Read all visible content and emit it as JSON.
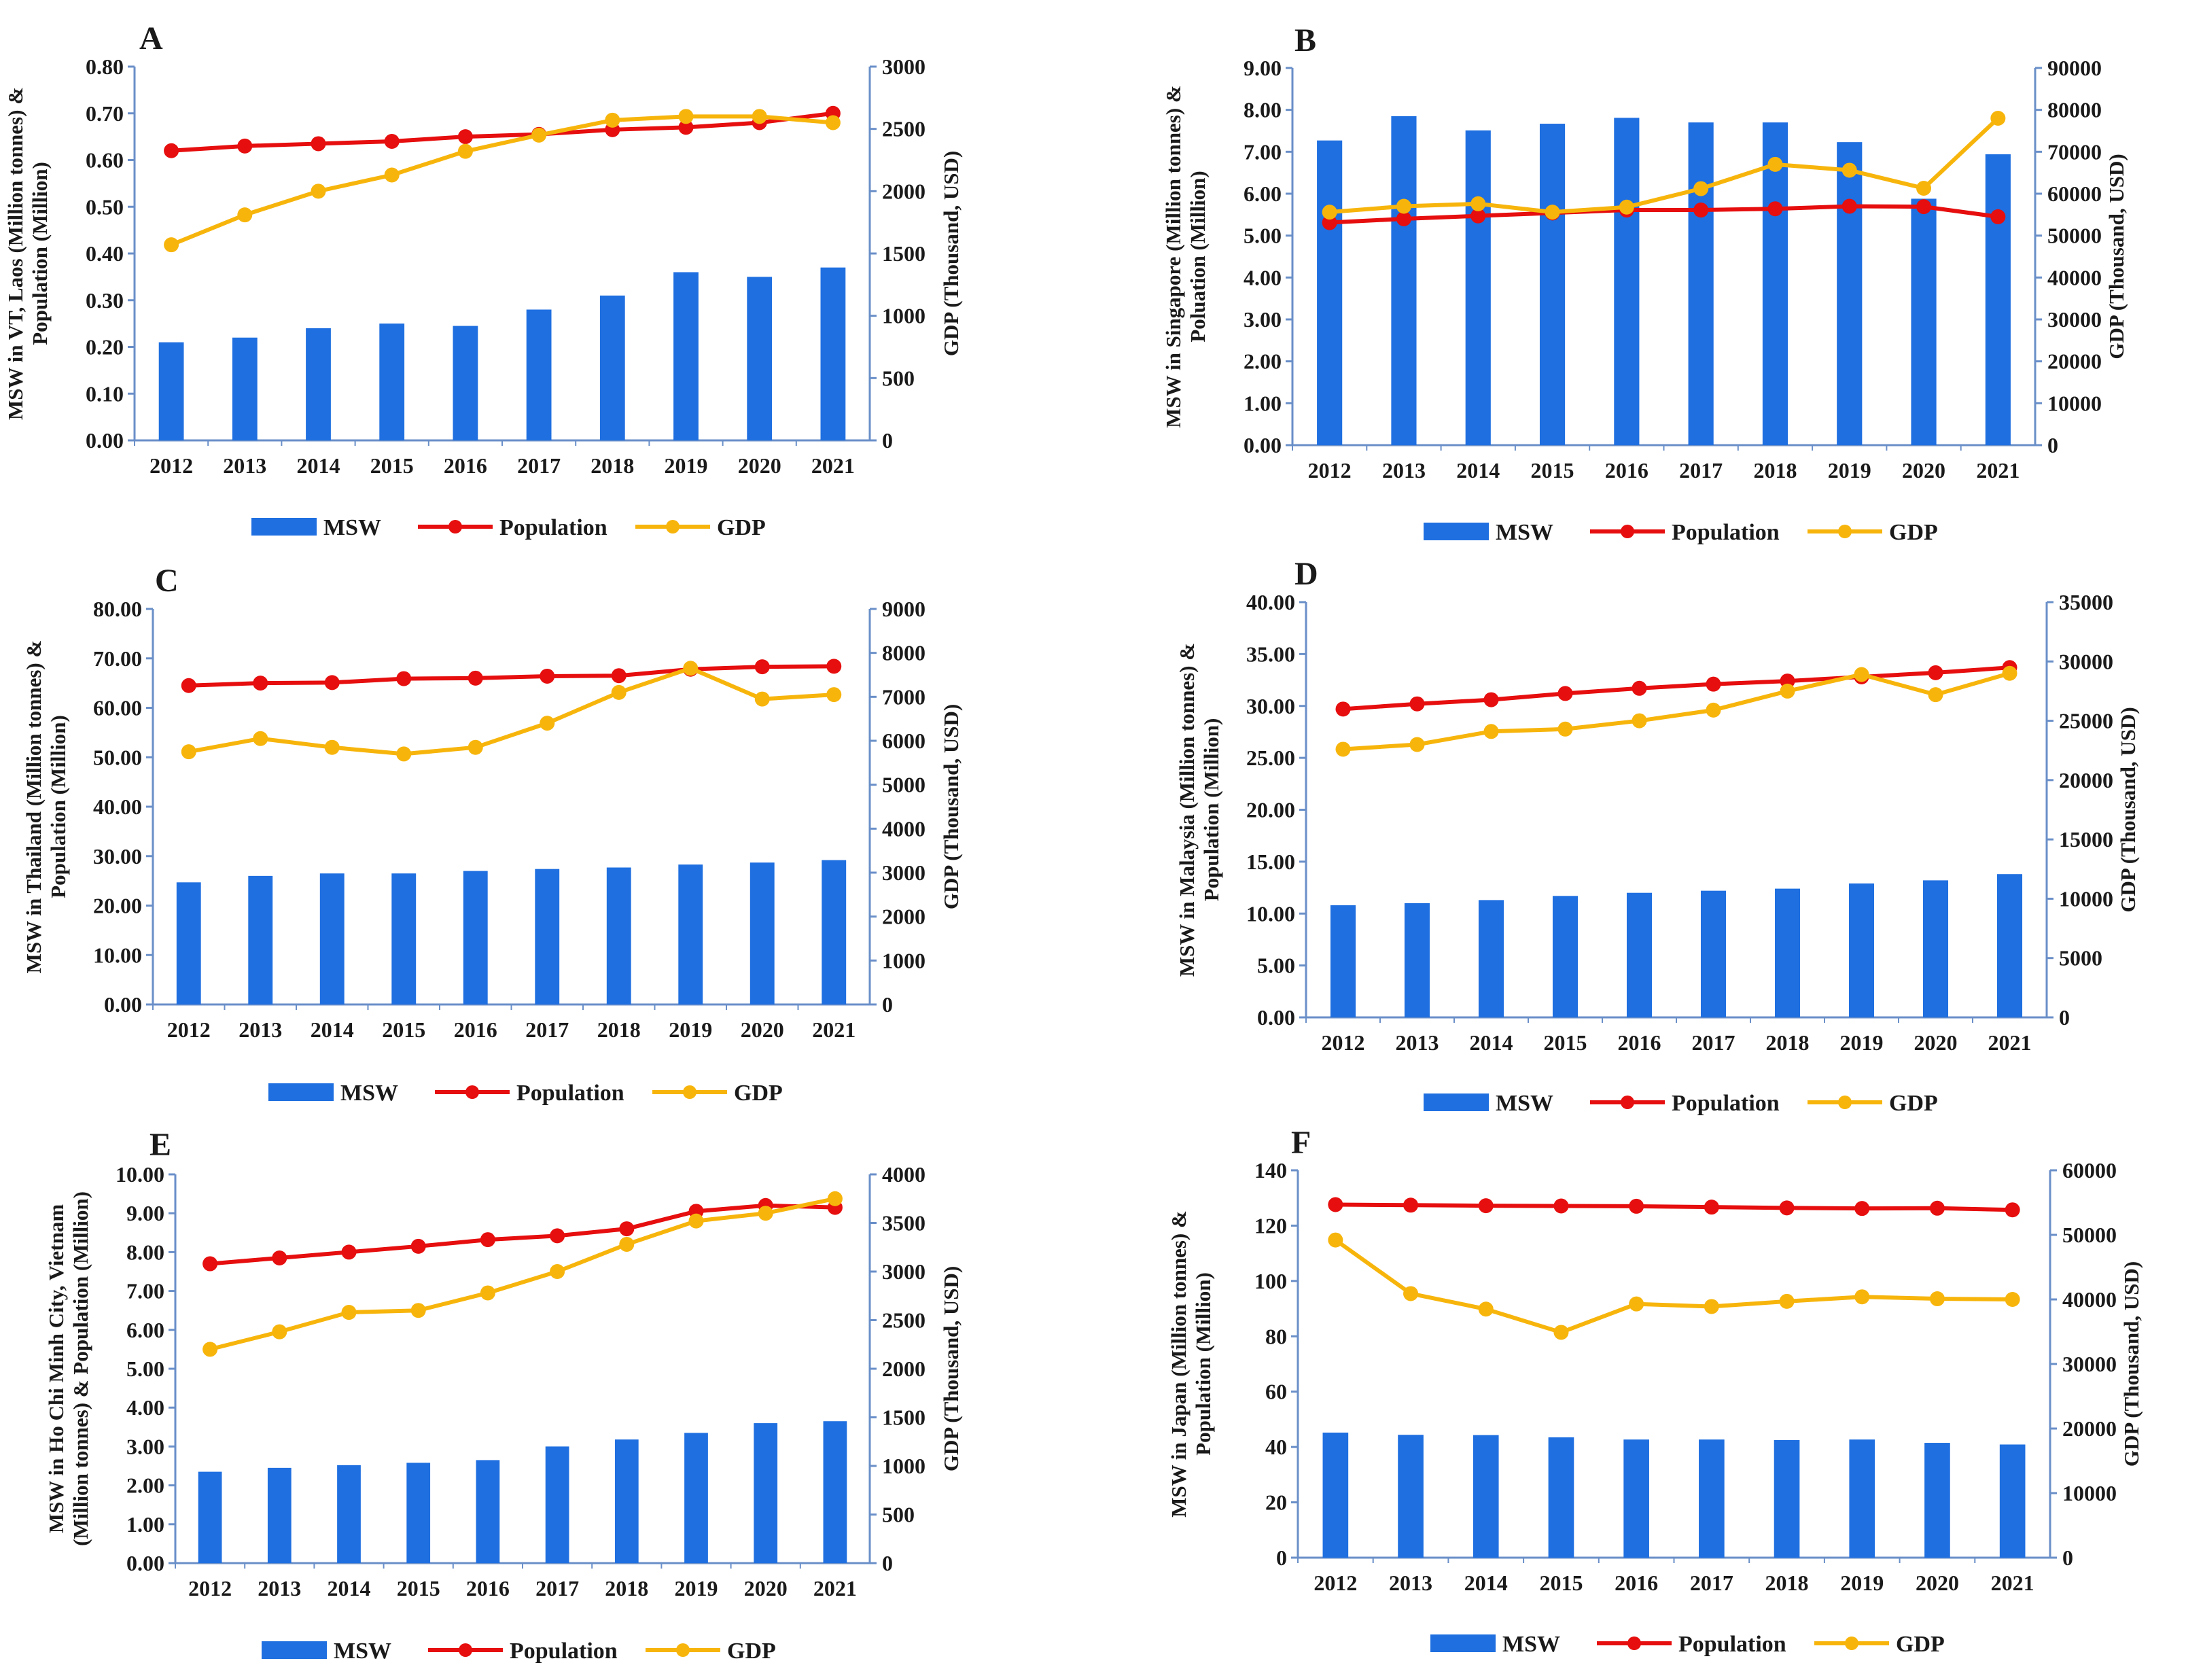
{
  "colors": {
    "msw": "#1f6fe0",
    "population": "#e60e0e",
    "gdp": "#f7b50c",
    "axis": "#6a8fc8"
  },
  "legend": {
    "msw": "MSW",
    "population": "Population",
    "gdp": "GDP"
  },
  "chart_data": [
    {
      "panel": "A",
      "type": "bar+line",
      "categories": [
        "2012",
        "2013",
        "2014",
        "2015",
        "2016",
        "2017",
        "2018",
        "2019",
        "2020",
        "2021"
      ],
      "ylabel_lines": [
        "MSW in VT, Laos (Million tonnes) &",
        "Population (Million)"
      ],
      "y2label": "GDP (Thousand, USD)",
      "yticks": [
        "0.00",
        "0.10",
        "0.20",
        "0.30",
        "0.40",
        "0.50",
        "0.60",
        "0.70",
        "0.80"
      ],
      "y2ticks": [
        "0",
        "500",
        "1000",
        "1500",
        "2000",
        "2500",
        "3000"
      ],
      "ylim": [
        0,
        0.8
      ],
      "y2lim": [
        0,
        3000
      ],
      "series": [
        {
          "name": "MSW",
          "kind": "bar",
          "axis": "left",
          "values": [
            0.21,
            0.22,
            0.24,
            0.25,
            0.245,
            0.28,
            0.31,
            0.36,
            0.35,
            0.37
          ]
        },
        {
          "name": "Population",
          "kind": "line",
          "axis": "left",
          "values": [
            0.62,
            0.63,
            0.635,
            0.64,
            0.65,
            0.655,
            0.665,
            0.67,
            0.68,
            0.7
          ]
        },
        {
          "name": "GDP",
          "kind": "line",
          "axis": "right",
          "values": [
            1570,
            1810,
            2000,
            2130,
            2320,
            2450,
            2570,
            2600,
            2600,
            2550
          ]
        }
      ]
    },
    {
      "panel": "B",
      "type": "bar+line",
      "categories": [
        "2012",
        "2013",
        "2014",
        "2015",
        "2016",
        "2017",
        "2018",
        "2019",
        "2020",
        "2021"
      ],
      "ylabel_lines": [
        "MSW in Singapore (Million tonnes) &",
        "Poluation (Million)"
      ],
      "y2label": "GDP (Thousand, USD)",
      "yticks": [
        "0.00",
        "1.00",
        "2.00",
        "3.00",
        "4.00",
        "5.00",
        "6.00",
        "7.00",
        "8.00",
        "9.00"
      ],
      "y2ticks": [
        "0",
        "10000",
        "20000",
        "30000",
        "40000",
        "50000",
        "60000",
        "70000",
        "80000",
        "90000"
      ],
      "ylim": [
        0,
        9
      ],
      "y2lim": [
        0,
        90000
      ],
      "series": [
        {
          "name": "MSW",
          "kind": "bar",
          "axis": "left",
          "values": [
            7.27,
            7.85,
            7.51,
            7.67,
            7.81,
            7.7,
            7.7,
            7.23,
            5.88,
            6.94
          ]
        },
        {
          "name": "Population",
          "kind": "line",
          "axis": "left",
          "values": [
            5.31,
            5.4,
            5.47,
            5.54,
            5.61,
            5.61,
            5.64,
            5.7,
            5.69,
            5.45
          ]
        },
        {
          "name": "GDP",
          "kind": "line",
          "axis": "right",
          "values": [
            55600,
            57000,
            57600,
            55600,
            56800,
            61200,
            67000,
            65600,
            61300,
            78000
          ]
        }
      ]
    },
    {
      "panel": "C",
      "type": "bar+line",
      "categories": [
        "2012",
        "2013",
        "2014",
        "2015",
        "2016",
        "2017",
        "2018",
        "2019",
        "2020",
        "2021"
      ],
      "ylabel_lines": [
        "MSW in Thailand (Million tonnes) &",
        "Population (Million)"
      ],
      "y2label": "GDP (Thousand, USD)",
      "yticks": [
        "0.00",
        "10.00",
        "20.00",
        "30.00",
        "40.00",
        "50.00",
        "60.00",
        "70.00",
        "80.00"
      ],
      "y2ticks": [
        "0",
        "1000",
        "2000",
        "3000",
        "4000",
        "5000",
        "6000",
        "7000",
        "8000",
        "9000"
      ],
      "ylim": [
        0,
        80
      ],
      "y2lim": [
        0,
        9000
      ],
      "series": [
        {
          "name": "MSW",
          "kind": "bar",
          "axis": "left",
          "values": [
            24.7,
            26.0,
            26.5,
            26.5,
            27.0,
            27.4,
            27.7,
            28.3,
            28.7,
            29.2
          ]
        },
        {
          "name": "Population",
          "kind": "line",
          "axis": "left",
          "values": [
            64.5,
            65.0,
            65.1,
            65.9,
            66.0,
            66.4,
            66.5,
            67.8,
            68.3,
            68.4
          ]
        },
        {
          "name": "GDP",
          "kind": "line",
          "axis": "right",
          "values": [
            5750,
            6050,
            5850,
            5700,
            5850,
            6400,
            7100,
            7650,
            6950,
            7050
          ]
        }
      ]
    },
    {
      "panel": "D",
      "type": "bar+line",
      "categories": [
        "2012",
        "2013",
        "2014",
        "2015",
        "2016",
        "2017",
        "2018",
        "2019",
        "2020",
        "2021"
      ],
      "ylabel_lines": [
        "MSW in Malaysia (Million tonnes) &",
        "Population (Million)"
      ],
      "y2label": "GDP (Thousand, USD)",
      "yticks": [
        "0.00",
        "5.00",
        "10.00",
        "15.00",
        "20.00",
        "25.00",
        "30.00",
        "35.00",
        "40.00"
      ],
      "y2ticks": [
        "0",
        "5000",
        "10000",
        "15000",
        "20000",
        "25000",
        "30000",
        "35000"
      ],
      "ylim": [
        0,
        40
      ],
      "y2lim": [
        0,
        35000
      ],
      "series": [
        {
          "name": "MSW",
          "kind": "bar",
          "axis": "left",
          "values": [
            10.8,
            11.0,
            11.3,
            11.7,
            12.0,
            12.2,
            12.4,
            12.9,
            13.2,
            13.8
          ]
        },
        {
          "name": "Population",
          "kind": "line",
          "axis": "left",
          "values": [
            29.7,
            30.2,
            30.6,
            31.2,
            31.7,
            32.1,
            32.4,
            32.8,
            33.2,
            33.7
          ]
        },
        {
          "name": "GDP",
          "kind": "line",
          "axis": "right",
          "values": [
            22600,
            23000,
            24100,
            24300,
            25000,
            25900,
            27500,
            28900,
            27200,
            29000
          ]
        }
      ]
    },
    {
      "panel": "E",
      "type": "bar+line",
      "categories": [
        "2012",
        "2013",
        "2014",
        "2015",
        "2016",
        "2017",
        "2018",
        "2019",
        "2020",
        "2021"
      ],
      "ylabel_lines": [
        "MSW in Ho Chi Minh City, Vietnam",
        "(Million tonnes) & Population (Million)"
      ],
      "y2label": "GDP (Thousand, USD)",
      "yticks": [
        "0.00",
        "1.00",
        "2.00",
        "3.00",
        "4.00",
        "5.00",
        "6.00",
        "7.00",
        "8.00",
        "9.00",
        "10.00"
      ],
      "y2ticks": [
        "0",
        "500",
        "1000",
        "1500",
        "2000",
        "2500",
        "3000",
        "3500",
        "4000"
      ],
      "ylim": [
        0,
        10
      ],
      "y2lim": [
        0,
        4000
      ],
      "series": [
        {
          "name": "MSW",
          "kind": "bar",
          "axis": "left",
          "values": [
            2.35,
            2.45,
            2.52,
            2.58,
            2.65,
            3.0,
            3.18,
            3.35,
            3.6,
            3.65
          ]
        },
        {
          "name": "Population",
          "kind": "line",
          "axis": "left",
          "values": [
            7.7,
            7.85,
            8.0,
            8.15,
            8.32,
            8.42,
            8.6,
            9.05,
            9.2,
            9.15
          ]
        },
        {
          "name": "GDP",
          "kind": "line",
          "axis": "right",
          "values": [
            2200,
            2380,
            2580,
            2600,
            2780,
            3000,
            3280,
            3520,
            3600,
            3750
          ]
        }
      ]
    },
    {
      "panel": "F",
      "type": "bar+line",
      "categories": [
        "2012",
        "2013",
        "2014",
        "2015",
        "2016",
        "2017",
        "2018",
        "2019",
        "2020",
        "2021"
      ],
      "ylabel_lines": [
        "MSW in Japan (Million tonnes) &",
        "Population (Million)"
      ],
      "y2label": "GDP (Thousand, USD)",
      "yticks": [
        "0",
        "20",
        "40",
        "60",
        "80",
        "100",
        "120",
        "140"
      ],
      "y2ticks": [
        "0",
        "10000",
        "20000",
        "30000",
        "40000",
        "50000",
        "60000"
      ],
      "ylim": [
        0,
        140
      ],
      "y2lim": [
        0,
        60000
      ],
      "series": [
        {
          "name": "MSW",
          "kind": "bar",
          "axis": "left",
          "values": [
            45.2,
            44.4,
            44.3,
            43.5,
            42.7,
            42.7,
            42.5,
            42.7,
            41.5,
            40.9
          ]
        },
        {
          "name": "Population",
          "kind": "line",
          "axis": "left",
          "values": [
            127.6,
            127.4,
            127.2,
            127.1,
            127.0,
            126.7,
            126.4,
            126.2,
            126.3,
            125.7
          ]
        },
        {
          "name": "GDP",
          "kind": "line",
          "axis": "right",
          "values": [
            49200,
            40900,
            38500,
            34900,
            39300,
            38900,
            39700,
            40400,
            40100,
            40000
          ]
        }
      ]
    }
  ]
}
